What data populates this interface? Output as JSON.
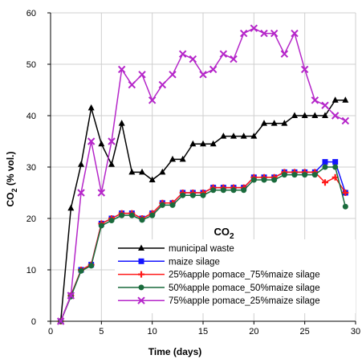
{
  "chart_data": {
    "type": "line",
    "title": "",
    "xlabel": "Time (days)",
    "ylabel_main": "CO",
    "ylabel_sub": "2",
    "ylabel_tail": " (% vol.)",
    "xlim": [
      0,
      30
    ],
    "ylim": [
      0,
      60
    ],
    "xticks": [
      0,
      5,
      10,
      15,
      20,
      25,
      30
    ],
    "yticks": [
      0,
      10,
      20,
      30,
      40,
      50,
      60
    ],
    "grid": true,
    "legend_title_main": "CO",
    "legend_title_sub": "2",
    "legend_position": "bottom-right",
    "series": [
      {
        "name": "municipal waste",
        "color": "#000000",
        "marker": "triangle",
        "x": [
          1,
          2,
          3,
          4,
          5,
          6,
          7,
          8,
          9,
          10,
          11,
          12,
          13,
          14,
          15,
          16,
          17,
          18,
          19,
          20,
          21,
          22,
          23,
          24,
          25,
          26,
          27,
          28,
          29
        ],
        "y": [
          0,
          22,
          30.5,
          41.5,
          34.5,
          30.5,
          38.5,
          29,
          29,
          27.5,
          29,
          31.5,
          31.5,
          34.5,
          34.5,
          34.5,
          36,
          36,
          36,
          36,
          38.5,
          38.5,
          38.5,
          40,
          40,
          40,
          40,
          43,
          43
        ]
      },
      {
        "name": "maize silage",
        "color": "#1414ff",
        "marker": "square",
        "x": [
          1,
          2,
          3,
          4,
          5,
          6,
          7,
          8,
          9,
          10,
          11,
          12,
          13,
          14,
          15,
          16,
          17,
          18,
          19,
          20,
          21,
          22,
          23,
          24,
          25,
          26,
          27,
          28,
          29
        ],
        "y": [
          0,
          5,
          10,
          11,
          19,
          20,
          21,
          21,
          20,
          21,
          23,
          23,
          25,
          25,
          25,
          26,
          26,
          26,
          26,
          28,
          28,
          28,
          29,
          29,
          29,
          29,
          31,
          31,
          25
        ]
      },
      {
        "name": "25%apple pomace_75%maize silage",
        "color": "#ff1a1a",
        "marker": "plus",
        "x": [
          1,
          2,
          3,
          4,
          5,
          6,
          7,
          8,
          9,
          10,
          11,
          12,
          13,
          14,
          15,
          16,
          17,
          18,
          19,
          20,
          21,
          22,
          23,
          24,
          25,
          26,
          27,
          28,
          29
        ],
        "y": [
          0,
          5,
          10,
          11,
          19,
          20,
          21,
          21,
          20,
          21,
          23,
          23,
          25,
          25,
          25,
          26,
          26,
          26,
          26,
          28,
          28,
          28,
          29,
          29,
          29,
          29,
          27,
          28,
          25
        ]
      },
      {
        "name": "50%apple pomace_50%maize silage",
        "color": "#1a6b3c",
        "marker": "circle",
        "x": [
          1,
          2,
          3,
          4,
          5,
          6,
          7,
          8,
          9,
          10,
          11,
          12,
          13,
          14,
          15,
          16,
          17,
          18,
          19,
          20,
          21,
          22,
          23,
          24,
          25,
          26,
          27,
          28,
          29
        ],
        "y": [
          0,
          4.8,
          9.8,
          10.8,
          18.6,
          19.6,
          20.6,
          20.6,
          19.7,
          20.6,
          22.6,
          22.6,
          24.5,
          24.5,
          24.5,
          25.5,
          25.5,
          25.5,
          25.5,
          27.5,
          27.5,
          27.5,
          28.5,
          28.5,
          28.5,
          28.5,
          30,
          30,
          22.3
        ]
      },
      {
        "name": "75%apple pomace_25%maize silage",
        "color": "#b526c9",
        "marker": "x",
        "x": [
          1,
          2,
          3,
          4,
          5,
          6,
          7,
          8,
          9,
          10,
          11,
          12,
          13,
          14,
          15,
          16,
          17,
          18,
          19,
          20,
          21,
          22,
          23,
          24,
          25,
          26,
          27,
          28,
          29
        ],
        "y": [
          0,
          5,
          25,
          35,
          25,
          35,
          49,
          46,
          48,
          43,
          46,
          48,
          52,
          51,
          48,
          49,
          52,
          51,
          56,
          57,
          56,
          56,
          52,
          56,
          49,
          43,
          42,
          40,
          39
        ]
      }
    ]
  }
}
